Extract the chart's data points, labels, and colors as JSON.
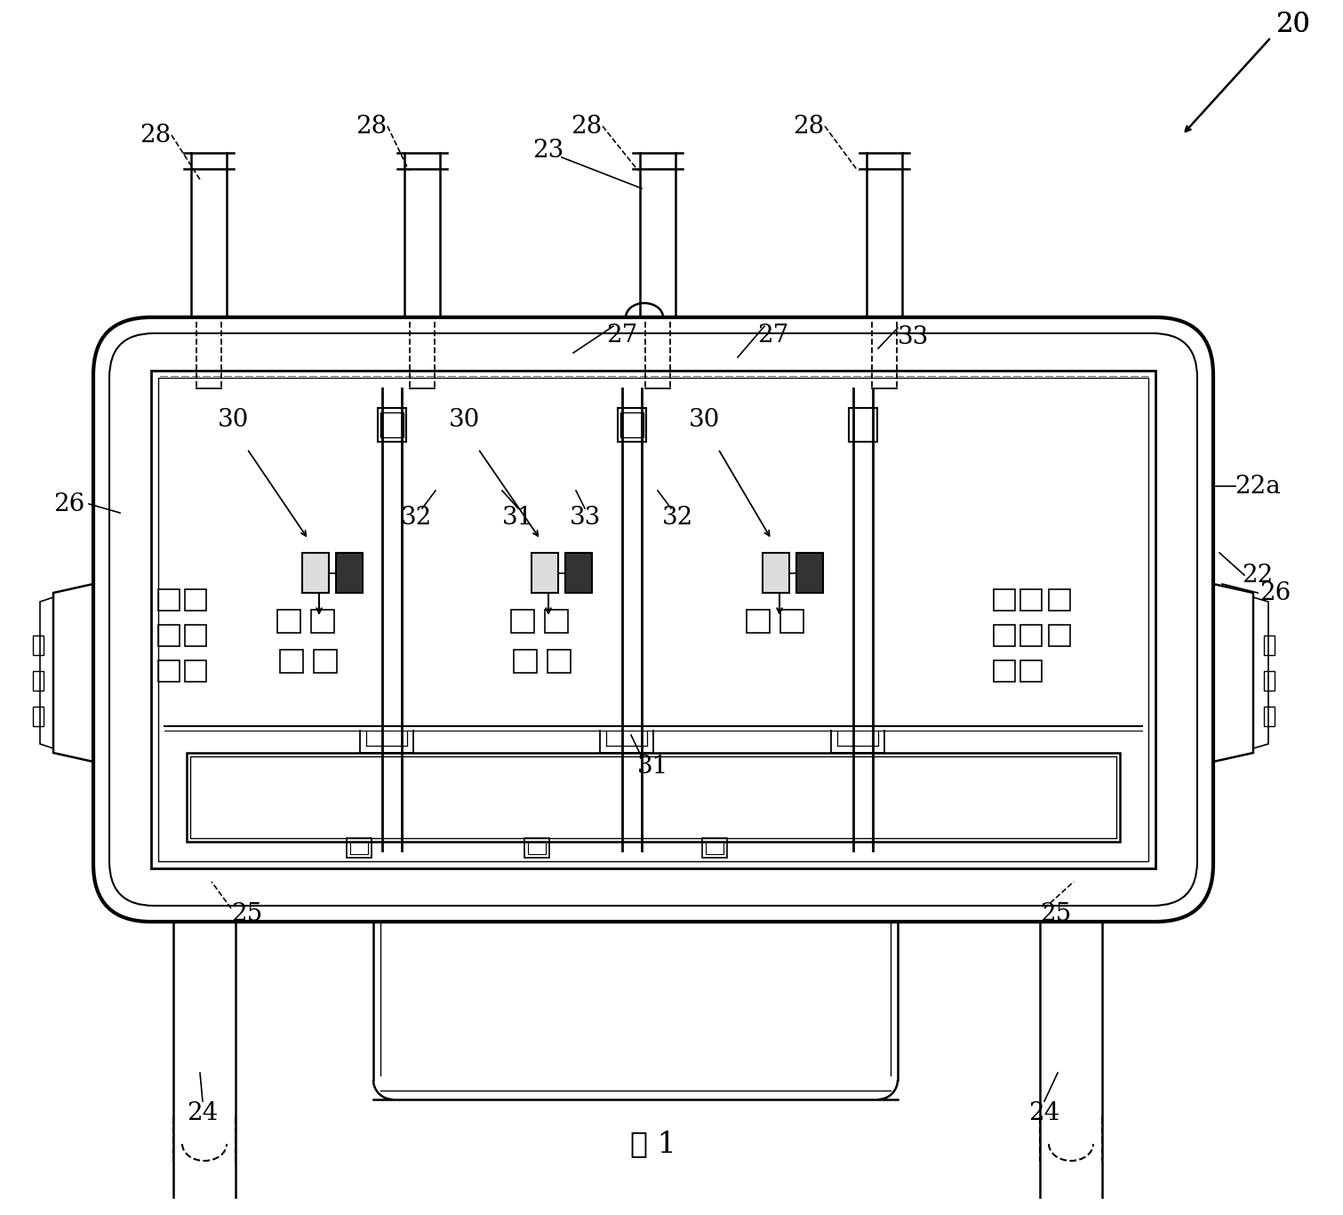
{
  "title": "图 1",
  "background_color": "#ffffff",
  "line_color": "#000000",
  "fig_width": 15.11,
  "fig_height": 13.67
}
